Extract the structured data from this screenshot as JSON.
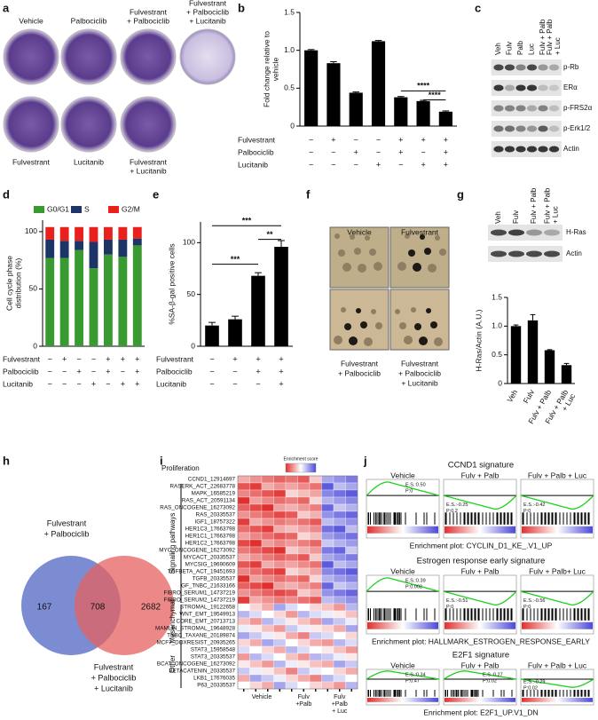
{
  "panel_letters": [
    "a",
    "b",
    "c",
    "d",
    "e",
    "f",
    "g",
    "h",
    "i",
    "j"
  ],
  "a": {
    "top": [
      [
        "Vehicle"
      ],
      [
        "Palbociclib"
      ],
      [
        "Fulvestrant",
        "+ Palbociclib"
      ],
      [
        "Fulvestrant",
        "+ Palbociclib",
        "+ Lucitanib"
      ]
    ],
    "bottom": [
      [
        "Fulvestrant"
      ],
      [
        "Lucitanib"
      ],
      [
        "Fulvestrant",
        "+ Lucitanib"
      ]
    ]
  },
  "c": {
    "lanes": [
      [
        "Veh"
      ],
      [
        "Fulv"
      ],
      [
        "Palb"
      ],
      [
        "Luc"
      ],
      [
        "Fulv + Palb"
      ],
      [
        "Fulv + Palb",
        "+ Luc"
      ]
    ],
    "proteins": [
      "p-Rb",
      "ERα",
      "p-FRS2α",
      "p-Erk1/2",
      "Actin"
    ]
  },
  "f": {
    "top": [
      "Vehicle",
      "Fulvestrant"
    ],
    "bottom": [
      [
        "Fulvestrant",
        "+ Palbociclib"
      ],
      [
        "Fulvestrant",
        "+ Palbociclib",
        "+ Lucitanib"
      ]
    ]
  },
  "g_blot": {
    "lanes": [
      [
        "Veh"
      ],
      [
        "Fulv"
      ],
      [
        "Fulv + Palb"
      ],
      [
        "Fulv + Palb",
        "+ Luc"
      ]
    ],
    "proteins": [
      "H-Ras",
      "Actin"
    ]
  },
  "h": {
    "set_a": [
      "Fulvestrant",
      "+ Palbociclib"
    ],
    "set_b": [
      "Fulvestrant",
      "+ Palbociclib",
      "+ Lucitanib"
    ],
    "only_a": 167,
    "both": 708,
    "only_b": 2682
  },
  "i": {
    "legend_title": "Enrichment score",
    "groups": [
      "Proliferation",
      "Signaling pathways",
      "Mesenchymal",
      "Other"
    ],
    "rows": [
      "CCND1_12914697",
      "RASERK_ACT_22683778",
      "MAPK_16585219",
      "RAS_ACT_20591134",
      "RAS_ONCOGENE_16273092",
      "RAS_20335537",
      "IGF1_18757322",
      "HER1C3_17663798",
      "HER1C1_17663798",
      "HER1C2_17663798",
      "MYC_ONCOGENE_16273092",
      "MYCACT_20335537",
      "MYCSIG_19690609",
      "TGFBETA_ACT_19451693",
      "TGFB_20335537",
      "GF_TNBC_21633166",
      "FIBRO_SERUM1_14737219",
      "FIBRO_SERUM2_14737219",
      "STROMAL_19122658",
      "WNT_EMT_19549913",
      "CORE_EMT_20713713",
      "MAMLIN_STROMAL_19648928",
      "TNBC_TAXANE_20189874",
      "MCF7_DOXRESIST_20935265",
      "STAT3_15958548",
      "STAT3_20335537",
      "BCAT_ONCOGENE_16273092",
      "BETACATENIN_20335537",
      "LKB1_17676035",
      "P63_20335537"
    ],
    "columns": [
      [
        "Vehicle"
      ],
      [
        "Fulv",
        "+Palb"
      ],
      [
        "Fulv",
        "+Palb",
        "+ Luc"
      ]
    ]
  },
  "j": {
    "signatures": [
      {
        "title": "CCND1 signature",
        "caption": "Enrichment plot: CYCLIN_D1_KE_.V1_UP",
        "panels": [
          {
            "label": "Vehicle",
            "stats": [
              "E.S.:0.50",
              "P:0"
            ]
          },
          {
            "label": "Fulv + Palb",
            "stats": [
              "E.S.:-0.25",
              "P:0.2"
            ]
          },
          {
            "label": "Fulv + Palb + Luc",
            "stats": [
              "E.S.:-0.42",
              "P:0"
            ]
          }
        ]
      },
      {
        "title": "Estrogen response early signature",
        "caption": "Enrichment plot: HALLMARK_ESTROGEN_RESPONSE_EARLY",
        "panels": [
          {
            "label": "Vehicle",
            "stats": [
              "E.S.:0.39",
              "P:0.002"
            ]
          },
          {
            "label": "Fulv + Palb",
            "stats": [
              "E.S.:-0.51",
              "P:0"
            ]
          },
          {
            "label": "Fulv + Palb+ Luc",
            "stats": [
              "E.S.:-0.56",
              "P:0"
            ]
          }
        ]
      },
      {
        "title": "E2F1 signature",
        "caption": "Enrichment plot: E2F1_UP.V1_DN",
        "panels": [
          {
            "label": "Vehicle",
            "stats": [
              "E.S.:0.34",
              "P:0.47"
            ]
          },
          {
            "label": "Fulv + Palb",
            "stats": [
              "E.S.:0.27",
              "P:0.02"
            ]
          },
          {
            "label": "Fulv + Palb + Luc",
            "stats": [
              "E.S.:-0.29",
              "P:0.02"
            ]
          }
        ]
      }
    ]
  },
  "chart_data": [
    {
      "type": "bar",
      "ylabel": [
        "Fold change relative to",
        "vehicle"
      ],
      "color": "#000000",
      "values": [
        1.0,
        0.83,
        0.44,
        1.12,
        0.38,
        0.33,
        0.19
      ],
      "errors": [
        0.01,
        0.02,
        0.01,
        0.01,
        0.01,
        0.01,
        0.01
      ],
      "ylim": [
        0,
        1.5
      ],
      "yticks": [
        0,
        0.5,
        {
          "value": 1,
          "label": "1.0"
        },
        1.5
      ],
      "conditions": [
        {
          "name": "Fulvestrant",
          "signs": [
            "−",
            "+",
            "−",
            "−",
            "+",
            "+",
            "+"
          ]
        },
        {
          "name": "Palbociclib",
          "signs": [
            "−",
            "−",
            "+",
            "−",
            "+",
            "−",
            "+"
          ]
        },
        {
          "name": "Lucitanib",
          "signs": [
            "−",
            "−",
            "−",
            "+",
            "−",
            "+",
            "+"
          ]
        }
      ],
      "annotations": [
        "****",
        "****"
      ]
    },
    {
      "type": "stacked_bar",
      "ylabel": [
        "Cell cycle phase",
        "distribution (%)"
      ],
      "series": [
        {
          "name": "G0/G1",
          "color": "#3a9a32",
          "values": [
            77,
            77,
            84,
            68,
            80,
            78,
            88
          ]
        },
        {
          "name": "S",
          "color": "#1c3566",
          "values": [
            16,
            15,
            8,
            23,
            13,
            15,
            6
          ]
        },
        {
          "name": "G2/M",
          "color": "#e8201e",
          "values": [
            11,
            12,
            12,
            13,
            11,
            11,
            10
          ]
        }
      ],
      "ylim": [
        0,
        110
      ],
      "yticks": [
        0,
        50,
        100
      ],
      "conditions": [
        {
          "name": "Fulvestrant",
          "signs": [
            "−",
            "+",
            "−",
            "−",
            "+",
            "+",
            "+"
          ]
        },
        {
          "name": "Palbociclib",
          "signs": [
            "−",
            "−",
            "+",
            "−",
            "+",
            "−",
            "+"
          ]
        },
        {
          "name": "Lucitanib",
          "signs": [
            "−",
            "−",
            "−",
            "+",
            "−",
            "+",
            "+"
          ]
        }
      ]
    },
    {
      "type": "bar",
      "ylabel": [
        "%SA-β-gal positive cells"
      ],
      "color": "#000000",
      "values": [
        20,
        26,
        68,
        96
      ],
      "errors": [
        3,
        3,
        3,
        6
      ],
      "ylim": [
        0,
        120
      ],
      "yticks": [
        0,
        50,
        100
      ],
      "conditions": [
        {
          "name": "Fulvestrant",
          "signs": [
            "−",
            "+",
            "+",
            "+"
          ]
        },
        {
          "name": "Palbociclib",
          "signs": [
            "−",
            "−",
            "+",
            "+"
          ]
        },
        {
          "name": "Lucitanib",
          "signs": [
            "−",
            "−",
            "−",
            "+"
          ]
        }
      ],
      "annotations": [
        "***",
        "**",
        "***"
      ]
    },
    {
      "type": "bar",
      "ylabel": [
        "H-Ras/Actin (A.U.)"
      ],
      "color": "#000000",
      "categories": [
        [
          "Veh"
        ],
        [
          "Fulv"
        ],
        [
          "Fulv + Palb"
        ],
        [
          "Fulv + Palb",
          "+ Luc"
        ]
      ],
      "values": [
        1.0,
        1.1,
        0.58,
        0.32
      ],
      "errors": [
        0.02,
        0.1,
        0.01,
        0.03
      ],
      "ylim": [
        0,
        1.5
      ],
      "yticks": [
        0,
        0.5,
        {
          "value": 1,
          "label": "1.0"
        },
        1.5
      ]
    }
  ]
}
